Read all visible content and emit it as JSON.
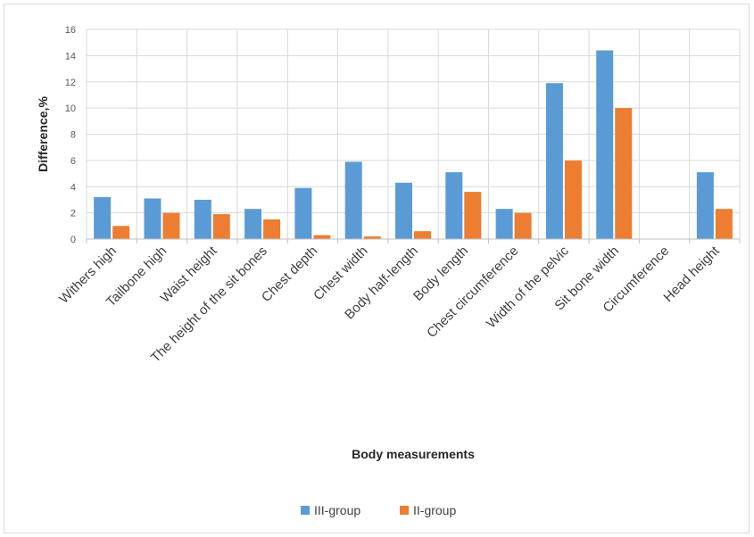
{
  "chart_data": {
    "type": "bar",
    "title": "",
    "xlabel": "Body measurements",
    "ylabel": "Difference,%",
    "ylim": [
      0,
      16
    ],
    "yticks": [
      0,
      2,
      4,
      6,
      8,
      10,
      12,
      14,
      16
    ],
    "grid": true,
    "legend_position": "bottom",
    "categories": [
      "Withers high",
      "Tailbone high",
      "Waist height",
      "The height of the sit bones",
      "Chest depth",
      "Chest width",
      "Body half-length",
      "Body length",
      "Chest circumference",
      "Width of the pelvic",
      "Sit bone width",
      "Circumference",
      "Head height"
    ],
    "series": [
      {
        "name": "III-group",
        "color": "#5b9bd5",
        "values": [
          3.2,
          3.1,
          3.0,
          2.3,
          3.9,
          5.9,
          4.3,
          5.1,
          2.3,
          11.9,
          14.4,
          0,
          5.1
        ]
      },
      {
        "name": "II-group",
        "color": "#ed7d31",
        "values": [
          1.0,
          2.0,
          1.9,
          1.5,
          0.3,
          0.2,
          0.6,
          3.6,
          2.0,
          6.0,
          10.0,
          0,
          2.3
        ]
      }
    ]
  }
}
